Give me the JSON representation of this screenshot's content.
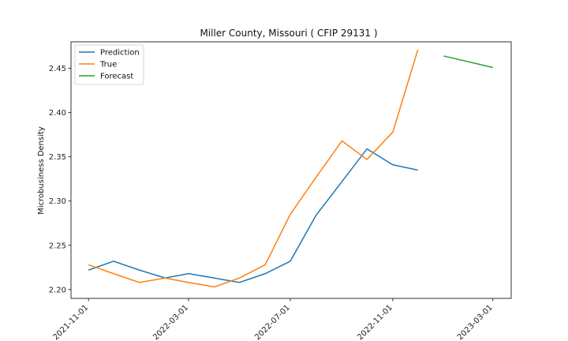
{
  "chart_data": {
    "type": "line",
    "title": "Miller County, Missouri ( CFIP 29131 )",
    "xlabel": "",
    "ylabel": "Microbusiness Density",
    "x_axis_type": "date",
    "xlim": [
      "2021-10-11",
      "2023-03-23"
    ],
    "ylim": [
      2.19,
      2.48
    ],
    "x_ticks": [
      "2021-11-01",
      "2022-03-01",
      "2022-07-01",
      "2022-11-01",
      "2023-03-01"
    ],
    "y_ticks": [
      2.2,
      2.25,
      2.3,
      2.35,
      2.4,
      2.45
    ],
    "grid": false,
    "legend_position": "top-left",
    "series": [
      {
        "name": "Prediction",
        "color": "#1f77b4",
        "x": [
          "2021-11-01",
          "2021-12-01",
          "2022-01-01",
          "2022-02-01",
          "2022-03-01",
          "2022-04-01",
          "2022-05-01",
          "2022-06-01",
          "2022-07-01",
          "2022-08-01",
          "2022-09-01",
          "2022-10-01",
          "2022-11-01",
          "2022-12-01"
        ],
        "y": [
          2.222,
          2.232,
          2.222,
          2.213,
          2.218,
          2.213,
          2.208,
          2.218,
          2.232,
          2.284,
          2.322,
          2.359,
          2.341,
          2.335
        ]
      },
      {
        "name": "True",
        "color": "#ff7f0e",
        "x": [
          "2021-11-01",
          "2021-12-01",
          "2022-01-01",
          "2022-02-01",
          "2022-03-01",
          "2022-04-01",
          "2022-05-01",
          "2022-06-01",
          "2022-07-01",
          "2022-08-01",
          "2022-09-01",
          "2022-10-01",
          "2022-11-01",
          "2022-12-01"
        ],
        "y": [
          2.228,
          2.218,
          2.208,
          2.213,
          2.208,
          2.203,
          2.213,
          2.228,
          2.285,
          2.327,
          2.368,
          2.347,
          2.378,
          2.471
        ]
      },
      {
        "name": "Forecast",
        "color": "#2ca02c",
        "x": [
          "2023-01-01",
          "2023-03-01"
        ],
        "y": [
          2.464,
          2.451
        ]
      }
    ]
  }
}
